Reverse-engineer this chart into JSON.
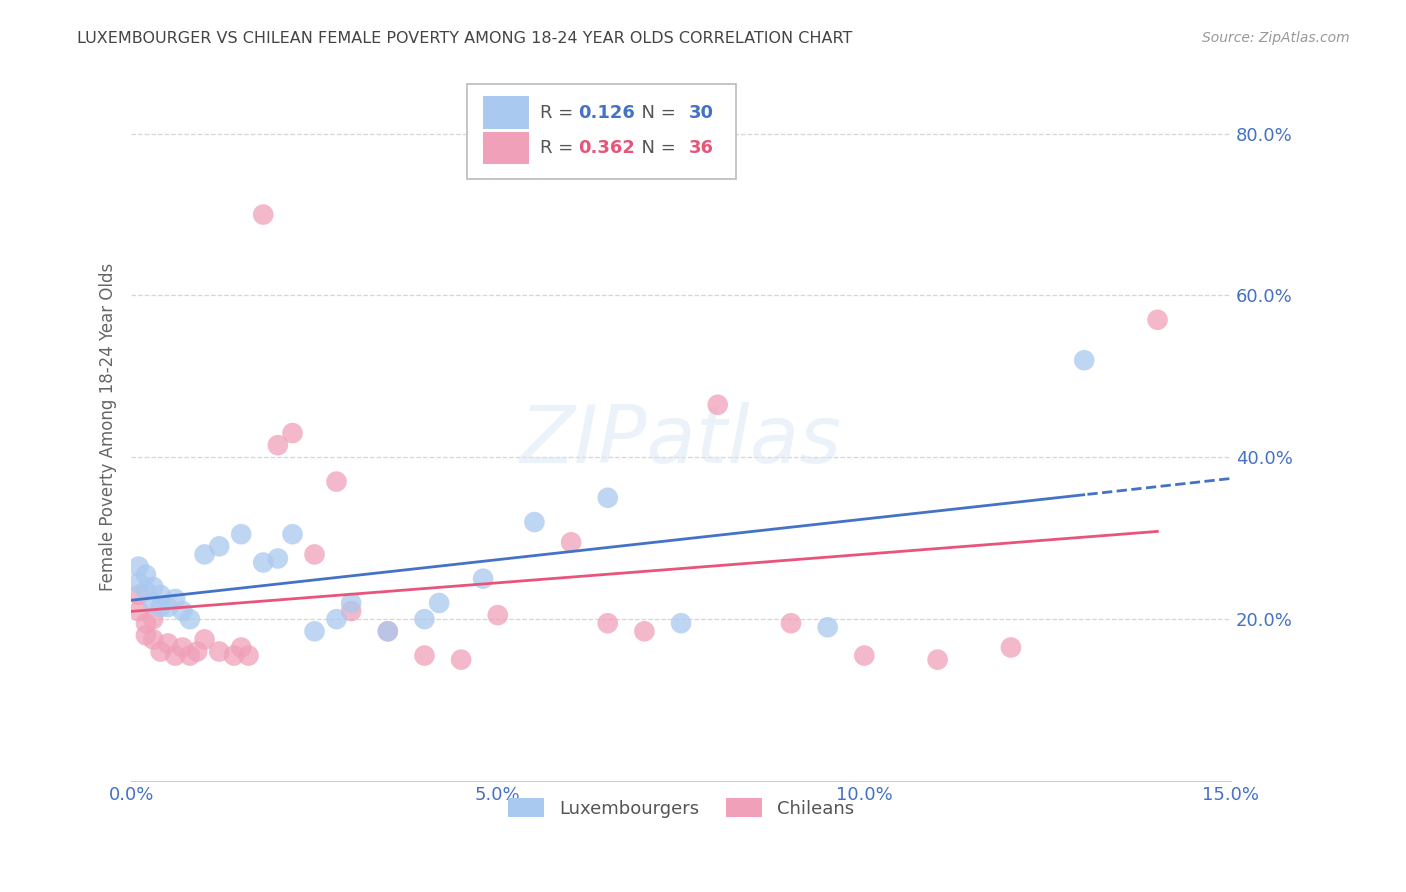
{
  "title": "LUXEMBOURGER VS CHILEAN FEMALE POVERTY AMONG 18-24 YEAR OLDS CORRELATION CHART",
  "source": "Source: ZipAtlas.com",
  "ylabel": "Female Poverty Among 18-24 Year Olds",
  "xlim": [
    0.0,
    0.15
  ],
  "ylim": [
    0.0,
    0.875
  ],
  "yticks": [
    0.2,
    0.4,
    0.6,
    0.8
  ],
  "xticks": [
    0.0,
    0.05,
    0.1,
    0.15
  ],
  "grid_color": "#cccccc",
  "background_color": "#ffffff",
  "watermark": "ZIPatlas",
  "lux_color": "#aac9f0",
  "chile_color": "#f0a0b8",
  "lux_R": 0.126,
  "lux_N": 30,
  "chile_R": 0.362,
  "chile_N": 36,
  "lux_line_color": "#4472c4",
  "chile_line_color": "#e8547a",
  "axis_label_color": "#4472c4",
  "luxembourgers_x": [
    0.001,
    0.001,
    0.002,
    0.002,
    0.003,
    0.003,
    0.004,
    0.004,
    0.005,
    0.006,
    0.007,
    0.008,
    0.01,
    0.012,
    0.015,
    0.018,
    0.02,
    0.022,
    0.025,
    0.028,
    0.03,
    0.035,
    0.04,
    0.042,
    0.048,
    0.055,
    0.065,
    0.075,
    0.095,
    0.13
  ],
  "luxembourgers_y": [
    0.245,
    0.265,
    0.235,
    0.255,
    0.22,
    0.24,
    0.215,
    0.23,
    0.215,
    0.225,
    0.21,
    0.2,
    0.28,
    0.29,
    0.305,
    0.27,
    0.275,
    0.305,
    0.185,
    0.2,
    0.22,
    0.185,
    0.2,
    0.22,
    0.25,
    0.32,
    0.35,
    0.195,
    0.19,
    0.52
  ],
  "chileans_x": [
    0.001,
    0.001,
    0.002,
    0.002,
    0.003,
    0.003,
    0.004,
    0.005,
    0.006,
    0.007,
    0.008,
    0.009,
    0.01,
    0.012,
    0.014,
    0.015,
    0.016,
    0.018,
    0.02,
    0.022,
    0.025,
    0.028,
    0.03,
    0.035,
    0.04,
    0.045,
    0.05,
    0.06,
    0.065,
    0.07,
    0.08,
    0.09,
    0.1,
    0.11,
    0.12,
    0.14
  ],
  "chileans_y": [
    0.23,
    0.21,
    0.195,
    0.18,
    0.2,
    0.175,
    0.16,
    0.17,
    0.155,
    0.165,
    0.155,
    0.16,
    0.175,
    0.16,
    0.155,
    0.165,
    0.155,
    0.7,
    0.415,
    0.43,
    0.28,
    0.37,
    0.21,
    0.185,
    0.155,
    0.15,
    0.205,
    0.295,
    0.195,
    0.185,
    0.465,
    0.195,
    0.155,
    0.15,
    0.165,
    0.57
  ]
}
